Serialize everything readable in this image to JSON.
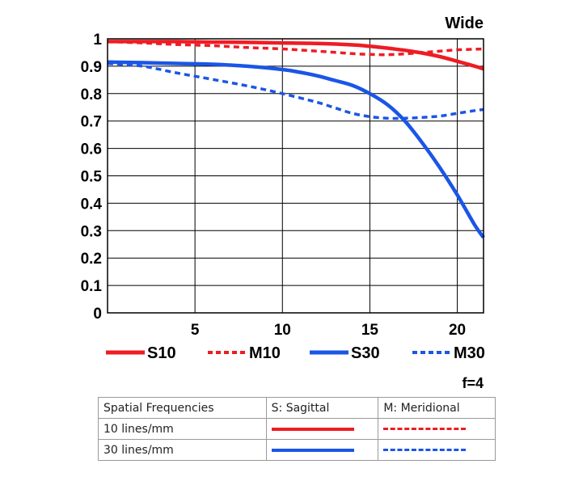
{
  "chart_data": {
    "type": "line",
    "title": "Wide",
    "xlabel": "",
    "ylabel": "",
    "xlim": [
      0,
      21.5
    ],
    "ylim": [
      0,
      1
    ],
    "xticks": [
      5,
      10,
      15,
      20
    ],
    "yticks": [
      0,
      0.1,
      0.2,
      0.3,
      0.4,
      0.5,
      0.6,
      0.7,
      0.8,
      0.9,
      1
    ],
    "ytick_labels": [
      "0",
      "0.1",
      "0.2",
      "0.3",
      "0.4",
      "0.5",
      "0.6",
      "0.7",
      "0.8",
      "0.9",
      "1"
    ],
    "grid": true,
    "f_number": "f=4",
    "series": [
      {
        "name": "S10",
        "color": "#ee1c24",
        "style": "solid",
        "x": [
          0,
          2,
          4,
          6,
          8,
          10,
          12,
          14,
          15,
          16,
          17,
          18,
          19,
          20,
          21,
          21.5
        ],
        "y": [
          0.99,
          0.99,
          0.99,
          0.988,
          0.987,
          0.985,
          0.983,
          0.978,
          0.973,
          0.966,
          0.958,
          0.948,
          0.935,
          0.918,
          0.9,
          0.89
        ]
      },
      {
        "name": "M10",
        "color": "#ee1c24",
        "style": "dashed",
        "x": [
          0,
          2,
          4,
          6,
          8,
          10,
          12,
          14,
          15,
          16,
          17,
          18,
          19,
          20,
          21,
          21.5
        ],
        "y": [
          0.99,
          0.985,
          0.979,
          0.975,
          0.968,
          0.963,
          0.955,
          0.946,
          0.943,
          0.942,
          0.945,
          0.95,
          0.955,
          0.96,
          0.962,
          0.963
        ]
      },
      {
        "name": "S30",
        "color": "#1a56e6",
        "style": "solid",
        "x": [
          0,
          2,
          4,
          6,
          8,
          10,
          11,
          12,
          13,
          14,
          15,
          16,
          17,
          18,
          19,
          20,
          21,
          21.5
        ],
        "y": [
          0.915,
          0.913,
          0.91,
          0.907,
          0.9,
          0.888,
          0.878,
          0.865,
          0.848,
          0.83,
          0.8,
          0.76,
          0.7,
          0.62,
          0.53,
          0.43,
          0.32,
          0.275
        ]
      },
      {
        "name": "M30",
        "color": "#1a56e6",
        "style": "dashed",
        "x": [
          0,
          2,
          4,
          6,
          8,
          10,
          12,
          13,
          14,
          15,
          16,
          17,
          18,
          19,
          20,
          21,
          21.5
        ],
        "y": [
          0.91,
          0.9,
          0.875,
          0.852,
          0.828,
          0.8,
          0.768,
          0.748,
          0.728,
          0.716,
          0.71,
          0.71,
          0.713,
          0.718,
          0.728,
          0.738,
          0.742
        ]
      }
    ]
  },
  "legend_table": {
    "headers": [
      "Spatial Frequencies",
      "S: Sagittal",
      "M: Meridional"
    ],
    "rows": [
      {
        "label": "10 lines/mm",
        "color": "#ee1c24"
      },
      {
        "label": "30 lines/mm",
        "color": "#1a56e6"
      }
    ]
  }
}
